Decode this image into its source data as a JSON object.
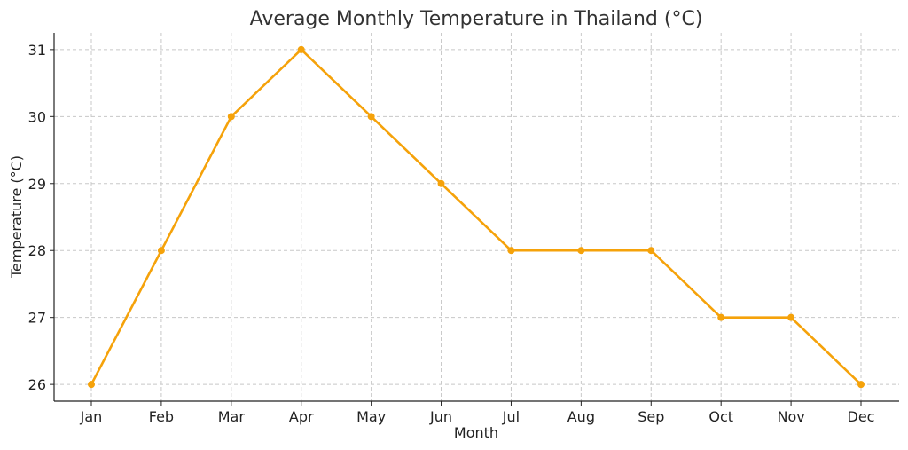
{
  "chart_data": {
    "type": "line",
    "title": "Average Monthly Temperature in Thailand (°C)",
    "xlabel": "Month",
    "ylabel": "Temperature (°C)",
    "categories": [
      "Jan",
      "Feb",
      "Mar",
      "Apr",
      "May",
      "Jun",
      "Jul",
      "Aug",
      "Sep",
      "Oct",
      "Nov",
      "Dec"
    ],
    "series": [
      {
        "values": [
          26,
          28,
          30,
          31,
          30,
          29,
          28,
          28,
          28,
          27,
          27,
          26
        ],
        "color": "#f5a20a",
        "marker": "circle"
      }
    ],
    "yticks": [
      26,
      27,
      28,
      29,
      30,
      31
    ],
    "ylim": [
      25.75,
      31.25
    ],
    "grid": true
  }
}
